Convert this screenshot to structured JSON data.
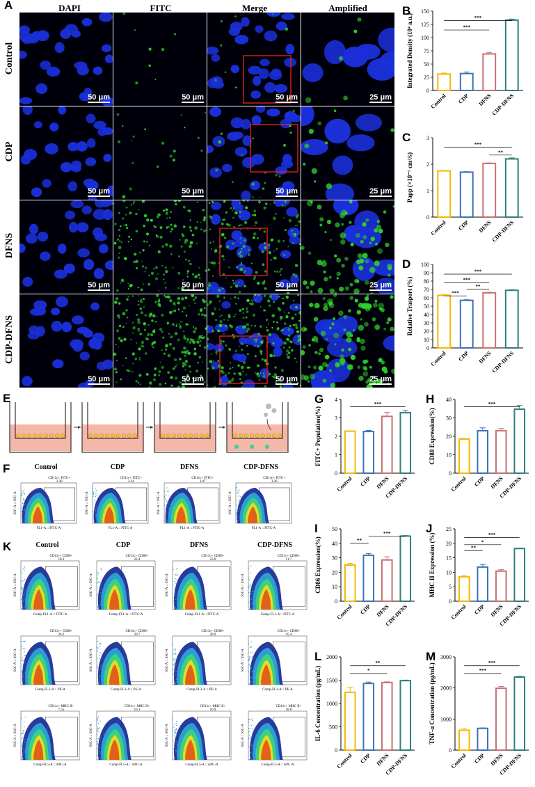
{
  "panels": {
    "a": "A",
    "b": "B",
    "c": "C",
    "d": "D",
    "e": "E",
    "f": "F",
    "g": "G",
    "h": "H",
    "i": "I",
    "j": "J",
    "k": "K",
    "l": "L",
    "m": "M"
  },
  "micrograph": {
    "columns": [
      "DAPI",
      "FITC",
      "Merge",
      "Amplified"
    ],
    "rows": [
      "Control",
      "CDP",
      "DFNS",
      "CDP-DFNS"
    ],
    "scale_main": "50 μm",
    "scale_amplified": "25 μm",
    "colors": {
      "nucleus": "#1a2fd8",
      "fitc": "#2fd02a",
      "box": "#e0201a"
    }
  },
  "flow_f": {
    "titles": [
      "Control",
      "CDP",
      "DFNS",
      "CDP-DFNS"
    ],
    "gate_label": "CD11c+ FITC+",
    "values": [
      "2.28",
      "2.24",
      "3.07",
      "3.26"
    ],
    "xlabel": "FL1-A :: FITC-A",
    "ylabel": "SSC-A :: SSC-A"
  },
  "flow_k": {
    "titles": [
      "Control",
      "CDP",
      "DFNS",
      "CDP-DFNS"
    ],
    "rows": [
      {
        "gate": "CD11c+ CD80+",
        "values": [
          "18.3",
          "22.4",
          "23.0",
          "31.7"
        ],
        "xlabel": "Comp-FL1-A :: FITC-A"
      },
      {
        "gate": "CD11c+ CD86+",
        "values": [
          "26.2",
          "29.7",
          "28.9",
          "45.4"
        ],
        "xlabel": "Comp-FL3-A :: PE-A"
      },
      {
        "gate": "CD11c+ MHC II+",
        "values": [
          "7.55",
          "10.1",
          "10.9",
          "18.0"
        ],
        "xlabel": "Comp-FL5-A :: APC-A"
      }
    ],
    "ylabel": "SSC-A :: SSC-A"
  },
  "categories": [
    "Control",
    "CDP",
    "DFNS",
    "CDP-DFNS"
  ],
  "colors": [
    "#f5b800",
    "#3a73b5",
    "#c87070",
    "#2f7f7f"
  ],
  "chart_data": [
    {
      "id": "B",
      "type": "bar",
      "categories": [
        "Control",
        "CDP",
        "DFNS",
        "CDP-DFNS"
      ],
      "values": [
        31,
        32,
        69,
        133
      ],
      "errors": [
        2,
        3,
        3,
        2
      ],
      "ylabel": "Integrated Density (10⁴ a.u.)",
      "ylim": [
        0,
        150
      ],
      "yticks": [
        "0",
        "25",
        "50",
        "75",
        "100",
        "125",
        "150"
      ],
      "sig": [
        "***",
        "***"
      ]
    },
    {
      "id": "C",
      "type": "bar",
      "categories": [
        "Control",
        "CDP",
        "DFNS",
        "CDP-DFNS"
      ],
      "values": [
        1.75,
        1.7,
        2.03,
        2.2
      ],
      "errors": [
        0.02,
        0.02,
        0.02,
        0.04
      ],
      "ylabel": "Papp (×10⁻⁵ cm²/s)",
      "ylim": [
        0,
        3
      ],
      "yticks": [
        "0",
        "1",
        "2",
        "3"
      ],
      "sig": [
        "***",
        "**"
      ]
    },
    {
      "id": "D",
      "type": "bar",
      "categories": [
        "Control",
        "CDP",
        "DFNS",
        "CDP-DFNS"
      ],
      "values": [
        63,
        57,
        66,
        69
      ],
      "errors": [
        0.8,
        0.8,
        0.8,
        0.8
      ],
      "ylabel": "Relative Trasport (%)",
      "ylim": [
        0,
        100
      ],
      "yticks": [
        "0",
        "10",
        "20",
        "30",
        "40",
        "50",
        "60",
        "70",
        "80",
        "90",
        "100"
      ],
      "sig": [
        "***",
        "***",
        "**",
        "***"
      ]
    },
    {
      "id": "G",
      "type": "bar",
      "categories": [
        "Control",
        "CDP",
        "DFNS",
        "CDP-DFNS"
      ],
      "values": [
        2.28,
        2.26,
        3.08,
        3.28
      ],
      "errors": [
        0.02,
        0.06,
        0.22,
        0.12
      ],
      "ylabel": "FITC+ Population(%)",
      "ylim": [
        0,
        4
      ],
      "yticks": [
        "0",
        "1",
        "2",
        "3",
        "4"
      ],
      "sig": [
        "***"
      ]
    },
    {
      "id": "H",
      "type": "bar",
      "categories": [
        "Control",
        "CDP",
        "DFNS",
        "CDP-DFNS"
      ],
      "values": [
        18.5,
        23,
        23,
        34.7
      ],
      "errors": [
        0.4,
        1.6,
        1.3,
        2
      ],
      "ylabel": "CD80 Expression(%)",
      "ylim": [
        0,
        40
      ],
      "yticks": [
        "0",
        "10",
        "20",
        "30",
        "40"
      ],
      "sig": [
        "***"
      ]
    },
    {
      "id": "I",
      "type": "bar",
      "categories": [
        "Control",
        "CDP",
        "DFNS",
        "CDP-DFNS"
      ],
      "values": [
        25,
        31.7,
        28.5,
        45
      ],
      "errors": [
        1.2,
        1.3,
        2.2,
        0.4
      ],
      "ylabel": "CD86 Expression(%)",
      "ylim": [
        0,
        50
      ],
      "yticks": [
        "0",
        "10",
        "20",
        "30",
        "40",
        "50"
      ],
      "sig": [
        "**",
        "***"
      ]
    },
    {
      "id": "J",
      "type": "bar",
      "categories": [
        "Control",
        "CDP",
        "DFNS",
        "CDP-DFNS"
      ],
      "values": [
        8.4,
        11.8,
        10.4,
        18.2
      ],
      "errors": [
        0.4,
        0.9,
        0.5,
        0.15
      ],
      "ylabel": "MHC II Expression (%)",
      "ylim": [
        0,
        25
      ],
      "yticks": [
        "0",
        "5",
        "10",
        "15",
        "20",
        "25"
      ],
      "sig": [
        "**",
        "*",
        "***"
      ]
    },
    {
      "id": "L",
      "type": "bar",
      "categories": [
        "Control",
        "CDP",
        "DFNS",
        "CDP-DFNS"
      ],
      "values": [
        1240,
        1430,
        1450,
        1490
      ],
      "errors": [
        110,
        30,
        15,
        12
      ],
      "ylabel": "IL-6 Concentration (pg/mL)",
      "ylim": [
        0,
        2000
      ],
      "yticks": [
        "0",
        "500",
        "1000",
        "1500",
        "2000"
      ],
      "sig": [
        "*",
        "**"
      ]
    },
    {
      "id": "M",
      "type": "bar",
      "categories": [
        "Control",
        "CDP",
        "DFNS",
        "CDP-DFNS"
      ],
      "values": [
        640,
        700,
        1990,
        2350
      ],
      "errors": [
        50,
        15,
        60,
        25
      ],
      "ylabel": "TNF-α Concentration (pg/mL)",
      "ylim": [
        0,
        3000
      ],
      "yticks": [
        "0",
        "1000",
        "2000",
        "3000"
      ],
      "sig": [
        "***",
        "***"
      ]
    }
  ]
}
